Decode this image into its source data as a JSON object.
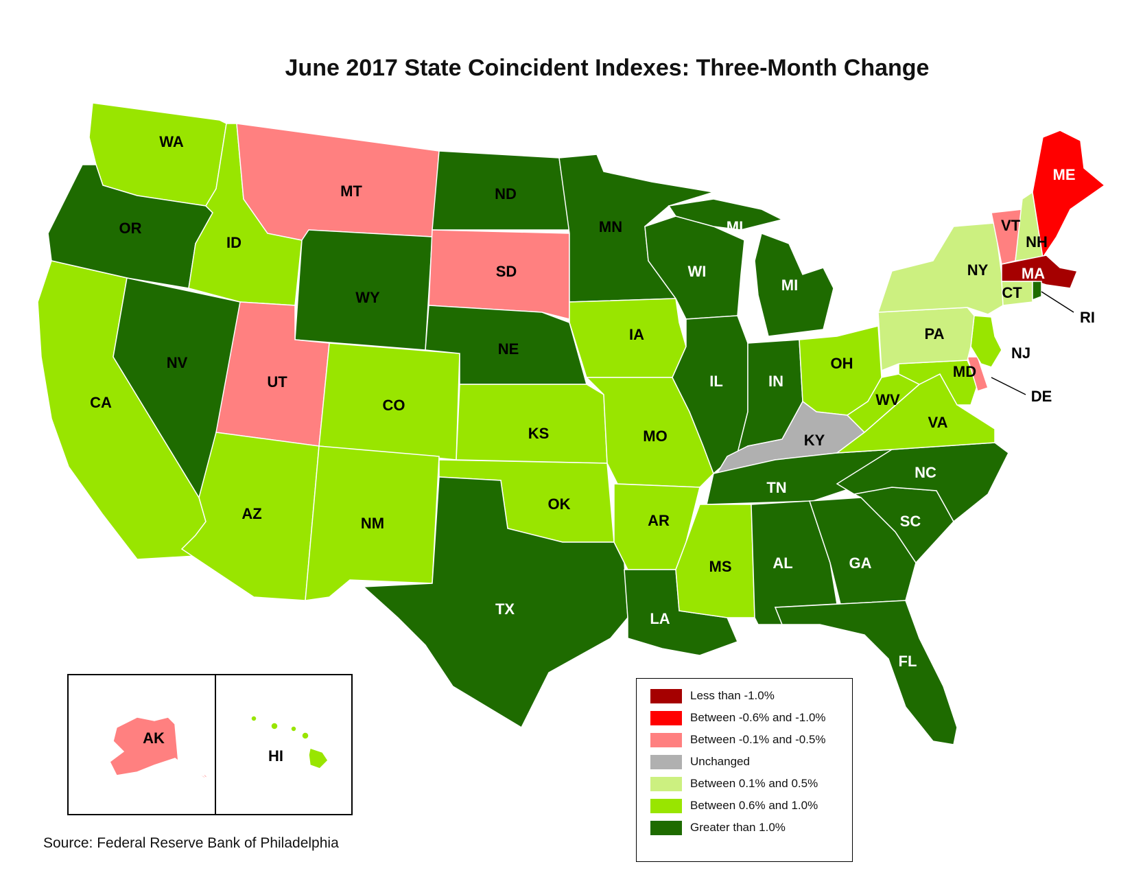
{
  "title": "June 2017 State Coincident Indexes: Three-Month Change",
  "source": "Source: Federal Reserve Bank of Philadelphia",
  "legend": [
    {
      "label": "Less than -1.0%",
      "color": "#A50000"
    },
    {
      "label": "Between -0.6% and -1.0%",
      "color": "#FF0000"
    },
    {
      "label": "Between -0.1% and -0.5%",
      "color": "#FF8080"
    },
    {
      "label": "Unchanged",
      "color": "#B0B0B0"
    },
    {
      "label": "Between 0.1% and 0.5%",
      "color": "#CCF080"
    },
    {
      "label": "Between 0.6% and 1.0%",
      "color": "#99E500"
    },
    {
      "label": "Greater than 1.0%",
      "color": "#1E6B00"
    }
  ],
  "states": {
    "WA": {
      "label": "WA",
      "category": "Between 0.6% and 1.0%"
    },
    "OR": {
      "label": "OR",
      "category": "Greater than 1.0%"
    },
    "CA": {
      "label": "CA",
      "category": "Between 0.6% and 1.0%"
    },
    "NV": {
      "label": "NV",
      "category": "Greater than 1.0%"
    },
    "ID": {
      "label": "ID",
      "category": "Between 0.6% and 1.0%"
    },
    "MT": {
      "label": "MT",
      "category": "Between -0.1% and -0.5%"
    },
    "WY": {
      "label": "WY",
      "category": "Greater than 1.0%"
    },
    "UT": {
      "label": "UT",
      "category": "Between -0.1% and -0.5%"
    },
    "AZ": {
      "label": "AZ",
      "category": "Between 0.6% and 1.0%"
    },
    "CO": {
      "label": "CO",
      "category": "Between 0.6% and 1.0%"
    },
    "NM": {
      "label": "NM",
      "category": "Between 0.6% and 1.0%"
    },
    "ND": {
      "label": "ND",
      "category": "Greater than 1.0%"
    },
    "SD": {
      "label": "SD",
      "category": "Between -0.1% and -0.5%"
    },
    "NE": {
      "label": "NE",
      "category": "Greater than 1.0%"
    },
    "KS": {
      "label": "KS",
      "category": "Between 0.6% and 1.0%"
    },
    "OK": {
      "label": "OK",
      "category": "Between 0.6% and 1.0%"
    },
    "TX": {
      "label": "TX",
      "category": "Greater than 1.0%"
    },
    "MN": {
      "label": "MN",
      "category": "Greater than 1.0%"
    },
    "IA": {
      "label": "IA",
      "category": "Between 0.6% and 1.0%"
    },
    "MO": {
      "label": "MO",
      "category": "Between 0.6% and 1.0%"
    },
    "AR": {
      "label": "AR",
      "category": "Between 0.6% and 1.0%"
    },
    "LA": {
      "label": "LA",
      "category": "Greater than 1.0%"
    },
    "WI": {
      "label": "WI",
      "category": "Greater than 1.0%"
    },
    "IL": {
      "label": "IL",
      "category": "Greater than 1.0%"
    },
    "MI": {
      "label": "MI",
      "category": "Greater than 1.0%"
    },
    "MI_UP": {
      "label": "MI",
      "category": "Greater than 1.0%"
    },
    "IN": {
      "label": "IN",
      "category": "Greater than 1.0%"
    },
    "OH": {
      "label": "OH",
      "category": "Between 0.6% and 1.0%"
    },
    "KY": {
      "label": "KY",
      "category": "Unchanged"
    },
    "TN": {
      "label": "TN",
      "category": "Greater than 1.0%"
    },
    "MS": {
      "label": "MS",
      "category": "Between 0.6% and 1.0%"
    },
    "AL": {
      "label": "AL",
      "category": "Greater than 1.0%"
    },
    "GA": {
      "label": "GA",
      "category": "Greater than 1.0%"
    },
    "FL": {
      "label": "FL",
      "category": "Greater than 1.0%"
    },
    "SC": {
      "label": "SC",
      "category": "Greater than 1.0%"
    },
    "NC": {
      "label": "NC",
      "category": "Greater than 1.0%"
    },
    "VA": {
      "label": "VA",
      "category": "Between 0.6% and 1.0%"
    },
    "WV": {
      "label": "WV",
      "category": "Between 0.6% and 1.0%"
    },
    "MD": {
      "label": "MD",
      "category": "Between 0.6% and 1.0%"
    },
    "DE": {
      "label": "DE",
      "category": "Between -0.1% and -0.5%"
    },
    "NJ": {
      "label": "NJ",
      "category": "Between 0.6% and 1.0%"
    },
    "PA": {
      "label": "PA",
      "category": "Between 0.1% and 0.5%"
    },
    "NY": {
      "label": "NY",
      "category": "Between 0.1% and 0.5%"
    },
    "CT": {
      "label": "CT",
      "category": "Between 0.1% and 0.5%"
    },
    "RI": {
      "label": "RI",
      "category": "Greater than 1.0%"
    },
    "MA": {
      "label": "MA",
      "category": "Less than -1.0%"
    },
    "VT": {
      "label": "VT",
      "category": "Between -0.1% and -0.5%"
    },
    "NH": {
      "label": "NH",
      "category": "Between 0.1% and 0.5%"
    },
    "ME": {
      "label": "ME",
      "category": "Between -0.6% and -1.0%"
    },
    "AK": {
      "label": "AK",
      "category": "Between -0.1% and -0.5%"
    },
    "HI": {
      "label": "HI",
      "category": "Between 0.6% and 1.0%"
    }
  }
}
